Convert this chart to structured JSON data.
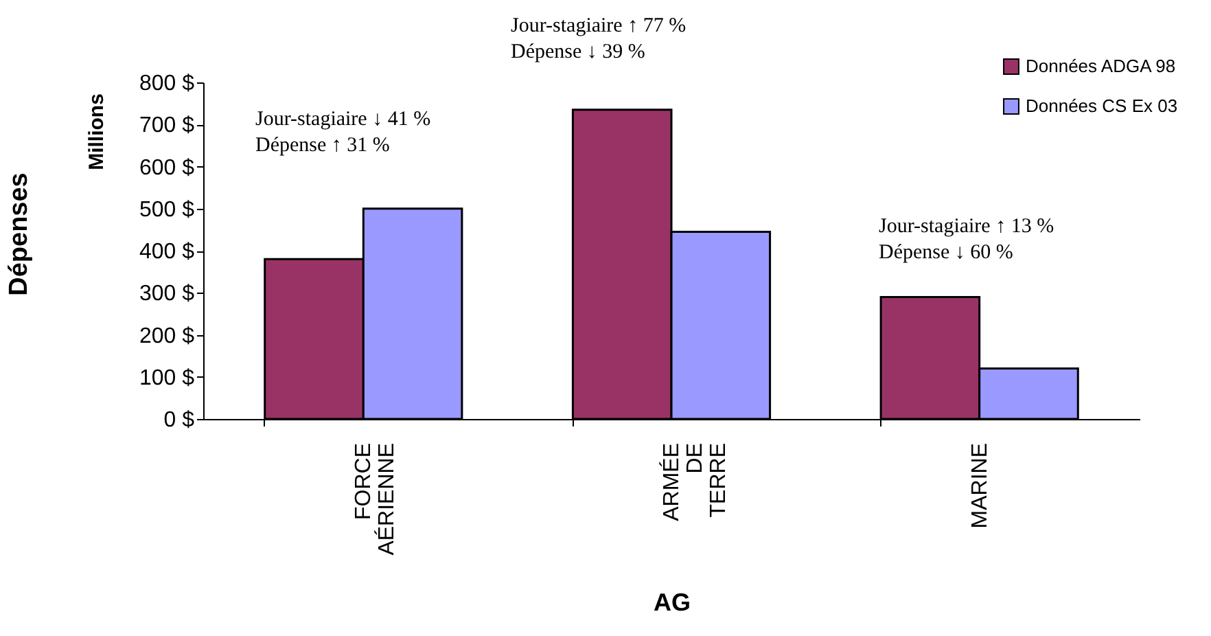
{
  "chart_data": {
    "type": "bar",
    "xlabel": "AG",
    "ylabel": "Dépenses",
    "categories": [
      "FORCE\nAÉRIENNE",
      "ARMÉE\nDE\nTERRE",
      "MARINE"
    ],
    "series": [
      {
        "name": "Données ADGA 98",
        "color": "#993366",
        "values": [
          380,
          735,
          290
        ]
      },
      {
        "name": "Données CS Ex 03",
        "color": "#9999ff",
        "values": [
          500,
          445,
          120
        ]
      }
    ],
    "ylim": [
      0,
      800
    ],
    "yticks": [
      {
        "value": 0,
        "label": "0 $"
      },
      {
        "value": 100,
        "label": "100 $"
      },
      {
        "value": 200,
        "label": "200 $"
      },
      {
        "value": 300,
        "label": "300 $"
      },
      {
        "value": 400,
        "label": "400 $"
      },
      {
        "value": 500,
        "label": "500 $"
      },
      {
        "value": 600,
        "label": "600 $"
      },
      {
        "value": 700,
        "label": "700 $"
      },
      {
        "value": 800,
        "label": "800 $"
      }
    ],
    "annotations": [
      "Millions",
      "Jour-stagiaire ↓ 41 %\nDépense ↑ 31 %",
      "Jour-stagiaire ↑ 77 %\nDépense ↓ 39 %",
      "Jour-stagiaire ↑ 13 %\nDépense ↓ 60 %"
    ],
    "grid": false,
    "legend": "top right"
  }
}
